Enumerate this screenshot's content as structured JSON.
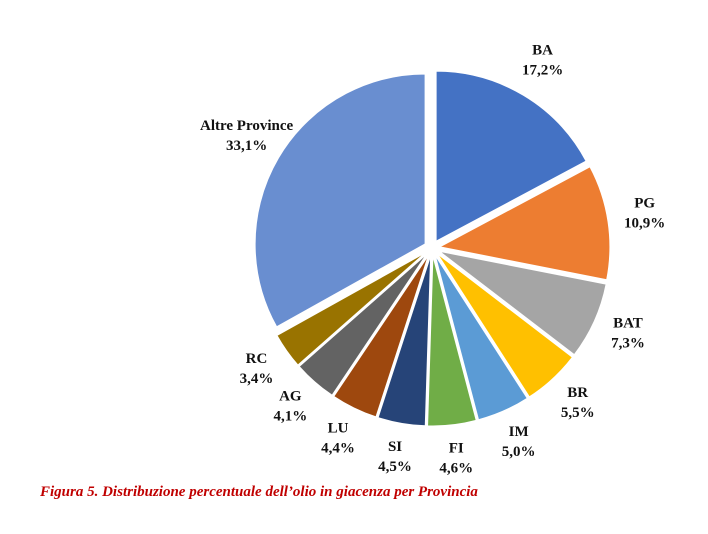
{
  "chart_data": {
    "type": "pie",
    "caption": "Figura 5. Distribuzione percentuale dell’olio in giacenza per Provincia",
    "categories": [
      "BA",
      "PG",
      "BAT",
      "BR",
      "IM",
      "FI",
      "SI",
      "LU",
      "AG",
      "RC",
      "Altre Province"
    ],
    "values": [
      17.2,
      10.9,
      7.3,
      5.5,
      5.0,
      4.6,
      4.5,
      4.4,
      4.1,
      3.4,
      33.1
    ],
    "value_labels": [
      "17,2%",
      "10,9%",
      "7,3%",
      "5,5%",
      "5,0%",
      "4,6%",
      "4,5%",
      "4,4%",
      "4,1%",
      "3,4%",
      "33,1%"
    ],
    "colors": [
      "#4472c4",
      "#ed7d31",
      "#a5a5a5",
      "#ffc000",
      "#5b9bd5",
      "#70ad47",
      "#264478",
      "#9e480e",
      "#636363",
      "#997300",
      "#698ed0"
    ]
  }
}
